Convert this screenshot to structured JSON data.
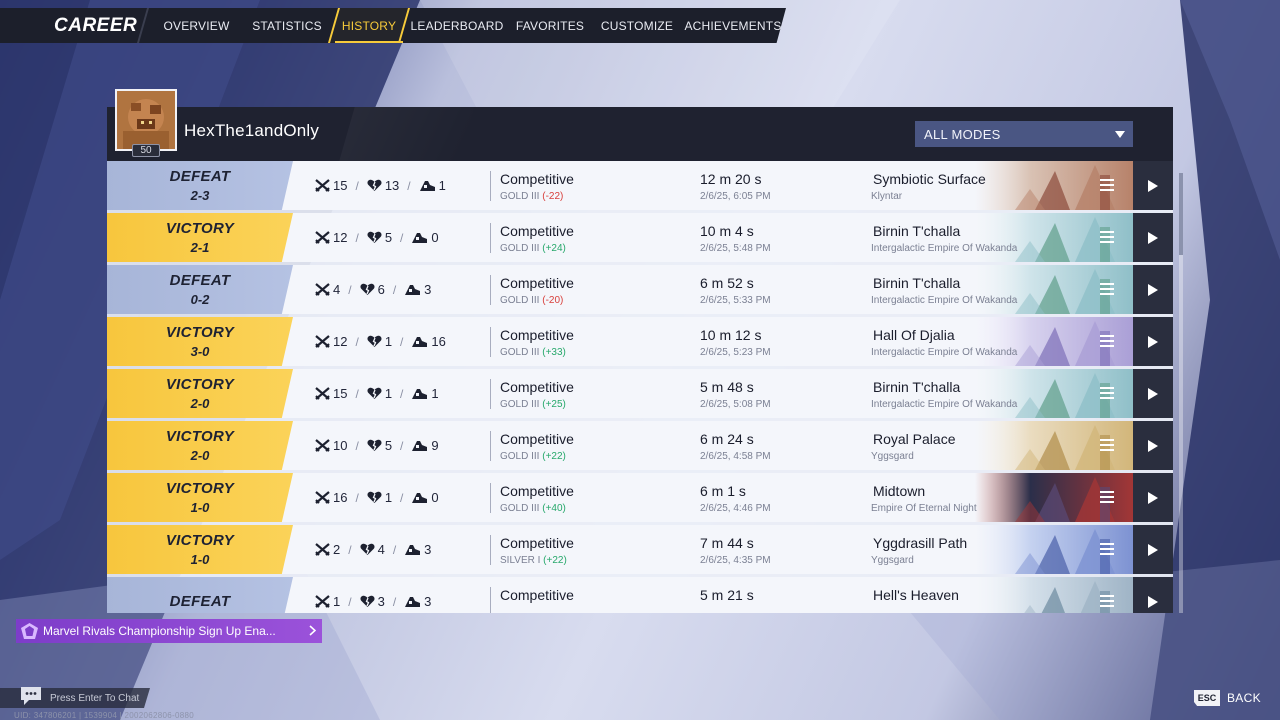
{
  "nav": {
    "title": "CAREER",
    "tabs": [
      {
        "label": "OVERVIEW",
        "active": false
      },
      {
        "label": "STATISTICS",
        "active": false
      },
      {
        "label": "HISTORY",
        "active": true
      },
      {
        "label": "LEADERBOARD",
        "active": false
      },
      {
        "label": "FAVORITES",
        "active": false
      },
      {
        "label": "CUSTOMIZE",
        "active": false
      },
      {
        "label": "ACHIEVEMENTS",
        "active": false
      }
    ]
  },
  "profile": {
    "username": "HexThe1andOnly",
    "level": "50",
    "mode_filter": "ALL MODES"
  },
  "matches": [
    {
      "result": "DEFEAT",
      "score": "2-3",
      "kills": "15",
      "deaths": "13",
      "assists": "1",
      "mode": "Competitive",
      "rank": "GOLD III",
      "rank_change": "(-22)",
      "duration": "12 m 20 s",
      "datetime": "2/6/25, 6:05 PM",
      "map": "Symbiotic Surface",
      "region": "Klyntar",
      "art": "klyntar"
    },
    {
      "result": "VICTORY",
      "score": "2-1",
      "kills": "12",
      "deaths": "5",
      "assists": "0",
      "mode": "Competitive",
      "rank": "GOLD III",
      "rank_change": "(+24)",
      "duration": "10 m 4 s",
      "datetime": "2/6/25, 5:48 PM",
      "map": "Birnin T'challa",
      "region": "Intergalactic Empire Of Wakanda",
      "art": "wakanda"
    },
    {
      "result": "DEFEAT",
      "score": "0-2",
      "kills": "4",
      "deaths": "6",
      "assists": "3",
      "mode": "Competitive",
      "rank": "GOLD III",
      "rank_change": "(-20)",
      "duration": "6 m 52 s",
      "datetime": "2/6/25, 5:33 PM",
      "map": "Birnin T'challa",
      "region": "Intergalactic Empire Of Wakanda",
      "art": "wakanda"
    },
    {
      "result": "VICTORY",
      "score": "3-0",
      "kills": "12",
      "deaths": "1",
      "assists": "16",
      "mode": "Competitive",
      "rank": "GOLD III",
      "rank_change": "(+33)",
      "duration": "10 m 12 s",
      "datetime": "2/6/25, 5:23 PM",
      "map": "Hall Of Djalia",
      "region": "Intergalactic Empire Of Wakanda",
      "art": "djalia"
    },
    {
      "result": "VICTORY",
      "score": "2-0",
      "kills": "15",
      "deaths": "1",
      "assists": "1",
      "mode": "Competitive",
      "rank": "GOLD III",
      "rank_change": "(+25)",
      "duration": "5 m 48 s",
      "datetime": "2/6/25, 5:08 PM",
      "map": "Birnin T'challa",
      "region": "Intergalactic Empire Of Wakanda",
      "art": "wakanda"
    },
    {
      "result": "VICTORY",
      "score": "2-0",
      "kills": "10",
      "deaths": "5",
      "assists": "9",
      "mode": "Competitive",
      "rank": "GOLD III",
      "rank_change": "(+22)",
      "duration": "6 m 24 s",
      "datetime": "2/6/25, 4:58 PM",
      "map": "Royal Palace",
      "region": "Yggsgard",
      "art": "palace"
    },
    {
      "result": "VICTORY",
      "score": "1-0",
      "kills": "16",
      "deaths": "1",
      "assists": "0",
      "mode": "Competitive",
      "rank": "GOLD III",
      "rank_change": "(+40)",
      "duration": "6 m 1 s",
      "datetime": "2/6/25, 4:46 PM",
      "map": "Midtown",
      "region": "Empire Of Eternal Night",
      "art": "midtown"
    },
    {
      "result": "VICTORY",
      "score": "1-0",
      "kills": "2",
      "deaths": "4",
      "assists": "3",
      "mode": "Competitive",
      "rank": "SILVER I",
      "rank_change": "(+22)",
      "duration": "7 m 44 s",
      "datetime": "2/6/25, 4:35 PM",
      "map": "Yggdrasill Path",
      "region": "Yggsgard",
      "art": "yggdrasill"
    },
    {
      "result": "DEFEAT",
      "score": "",
      "kills": "1",
      "deaths": "3",
      "assists": "3",
      "mode": "Competitive",
      "rank": "",
      "rank_change": "",
      "duration": "5 m 21 s",
      "datetime": "",
      "map": "Hell's Heaven",
      "region": "",
      "art": "hell"
    }
  ],
  "notice": {
    "text": "Marvel Rivals Championship Sign Up Ena..."
  },
  "chat": {
    "hint": "Press Enter To Chat",
    "uid": "UID: 347806201 | 1539904 | 2002062806-0880"
  },
  "back": {
    "key": "ESC",
    "label": "BACK"
  },
  "colors": {
    "victory": "#f7c63d",
    "defeat": "#a7b5d8",
    "accent": "#f7cb3b",
    "rank_up": "#27a86b",
    "rank_down": "#d8403c"
  }
}
